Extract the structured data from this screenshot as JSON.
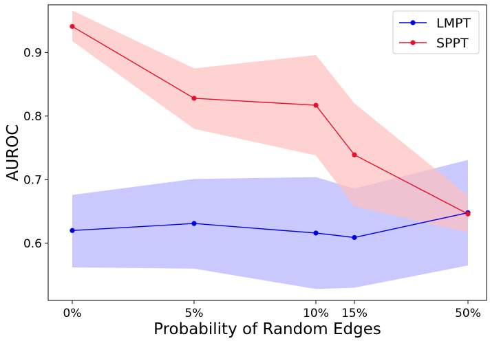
{
  "chart_data": {
    "type": "line",
    "xlabel": "Probability of Random Edges",
    "ylabel": "AUROC",
    "x": [
      0,
      5,
      10,
      15,
      50
    ],
    "x_tick_labels": [
      "0%",
      "5%",
      "10%",
      "15%",
      "50%"
    ],
    "y_ticks": [
      0.6,
      0.7,
      0.8,
      0.9
    ],
    "y_tick_labels": [
      "0.6",
      "0.7",
      "0.8",
      "0.9"
    ],
    "ylim": [
      0.51,
      0.975
    ],
    "grid": false,
    "legend_position": "top-right",
    "series": [
      {
        "name": "LMPT",
        "color": "#0000dd",
        "band_color": "#bfc0ff",
        "values": [
          0.62,
          0.631,
          0.616,
          0.609,
          0.648
        ],
        "upper": [
          0.676,
          0.701,
          0.704,
          0.686,
          0.731
        ],
        "lower": [
          0.562,
          0.56,
          0.528,
          0.53,
          0.565
        ]
      },
      {
        "name": "SPPT",
        "color": "#e8102a",
        "band_color": "#ffbfbf",
        "values": [
          0.941,
          0.828,
          0.817,
          0.739,
          0.646
        ],
        "upper": [
          0.966,
          0.875,
          0.896,
          0.82,
          0.675
        ],
        "lower": [
          0.918,
          0.78,
          0.738,
          0.658,
          0.617
        ]
      }
    ]
  }
}
